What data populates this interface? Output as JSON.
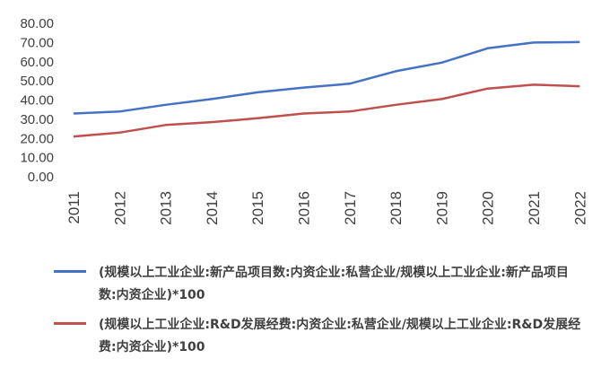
{
  "chart_data": {
    "type": "line",
    "x": [
      "2011",
      "2012",
      "2013",
      "2014",
      "2015",
      "2016",
      "2017",
      "2018",
      "2019",
      "2020",
      "2021",
      "2022"
    ],
    "series": [
      {
        "name": "(规模以上工业企业:新产品项目数:内资企业:私营企业/规模以上工业企业:新产品项目数:内资企业)*100",
        "color": "#4472C4",
        "values": [
          33.0,
          34.0,
          37.5,
          40.5,
          44.0,
          46.5,
          48.5,
          55.0,
          59.5,
          67.0,
          70.0,
          70.2
        ]
      },
      {
        "name": "(规模以上工业企业:R&D发展经费:内资企业:私营企业/规模以上工业企业:R&D发展经费:内资企业)*100",
        "color": "#C0504D",
        "values": [
          21.0,
          23.0,
          27.0,
          28.5,
          30.5,
          33.0,
          34.0,
          37.5,
          40.5,
          46.0,
          48.0,
          47.2
        ]
      }
    ],
    "ylim": [
      0,
      80
    ],
    "yticks": [
      "0.00",
      "10.00",
      "20.00",
      "30.00",
      "40.00",
      "50.00",
      "60.00",
      "70.00",
      "80.00"
    ],
    "grid": false,
    "legend_position": "bottom",
    "title": "",
    "xlabel": "",
    "ylabel": ""
  }
}
